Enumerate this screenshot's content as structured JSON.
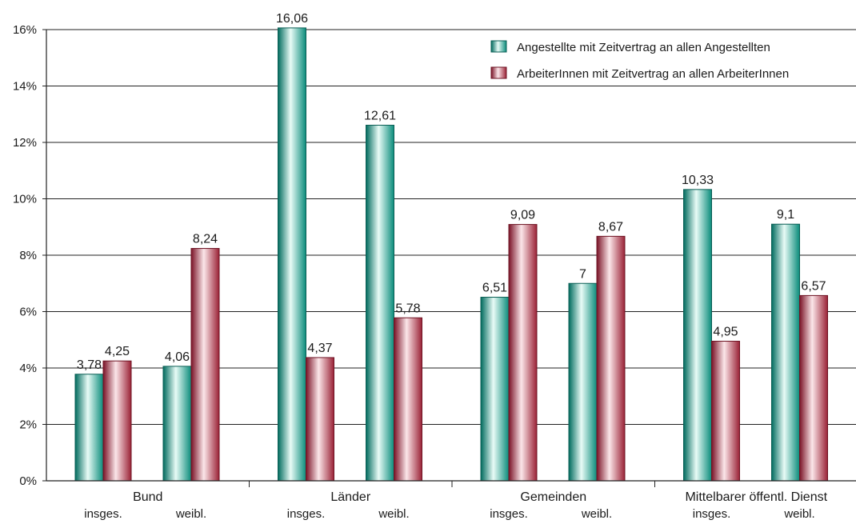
{
  "chart_data": {
    "type": "bar",
    "title": "",
    "xlabel": "",
    "ylabel": "",
    "ylim": [
      0,
      16
    ],
    "y_ticks": [
      0,
      2,
      4,
      6,
      8,
      10,
      12,
      14,
      16
    ],
    "y_tick_labels": [
      "0%",
      "2%",
      "4%",
      "6%",
      "8%",
      "10%",
      "12%",
      "14%",
      "16%"
    ],
    "grid": true,
    "legend_position": "top-right",
    "groups": [
      {
        "label": "Bund"
      },
      {
        "label": "Länder"
      },
      {
        "label": "Gemeinden"
      },
      {
        "label": "Mittelbarer öffentl. Dienst"
      }
    ],
    "subcategories": [
      "insges.",
      "weibl."
    ],
    "categories": [
      "Bund insges.",
      "Bund weibl.",
      "Länder insges.",
      "Länder weibl.",
      "Gemeinden insges.",
      "Gemeinden weibl.",
      "Mittelbarer öffentl. Dienst insges.",
      "Mittelbarer öffentl. Dienst weibl."
    ],
    "series": [
      {
        "name": "Angestellte mit Zeitvertrag an allen Angestellten",
        "color": "#0f9a88",
        "values": [
          3.78,
          4.06,
          16.06,
          12.61,
          6.51,
          7,
          10.33,
          9.1
        ],
        "value_labels": [
          "3,78",
          "4,06",
          "16,06",
          "12,61",
          "6,51",
          "7",
          "10,33",
          "9,1"
        ]
      },
      {
        "name": "ArbeiterInnen mit Zeitvertrag an allen ArbeiterInnen",
        "color": "#a82a3e",
        "values": [
          4.25,
          8.24,
          4.37,
          5.78,
          9.09,
          8.67,
          4.95,
          6.57
        ],
        "value_labels": [
          "4,25",
          "8,24",
          "4,37",
          "5,78",
          "9,09",
          "8,67",
          "4,95",
          "6,57"
        ]
      }
    ]
  }
}
